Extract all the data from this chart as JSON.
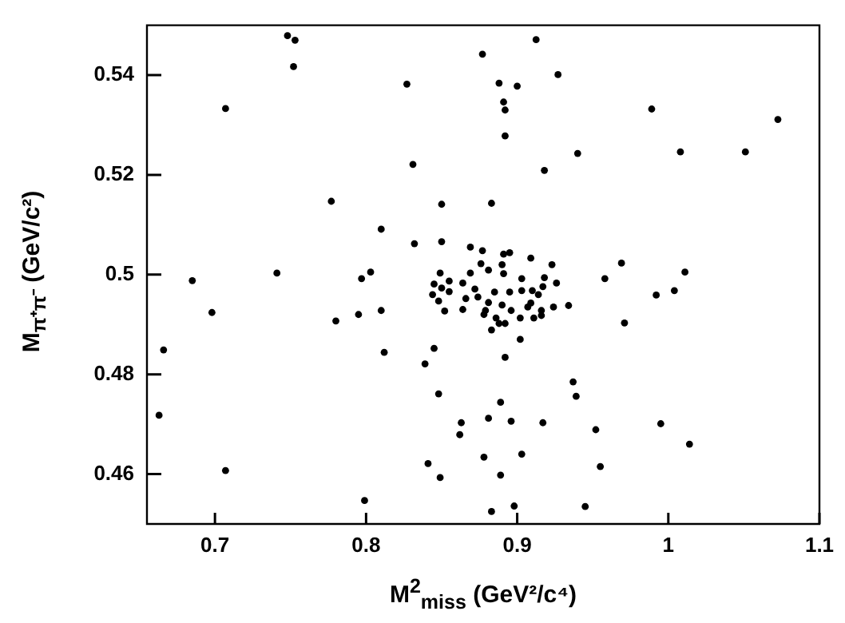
{
  "chart_data": {
    "type": "scatter",
    "xlabel": "M$^{2}$$_{miss}$ (GeV²/c⁴)",
    "ylabel": "M$_{π⁺π⁻}$ (GeV/c²)",
    "xlim": [
      0.655,
      1.1
    ],
    "ylim": [
      0.45,
      0.55
    ],
    "xticks": [
      0.7,
      0.8,
      0.9,
      1,
      1.1
    ],
    "yticks": [
      0.46,
      0.48,
      0.5,
      0.52,
      0.54
    ],
    "grid": false,
    "legend": false,
    "marker": "circle",
    "series": [
      {
        "color": "#000000",
        "x": [
          0.748,
          0.753,
          0.752,
          0.707,
          0.827,
          0.877,
          0.831,
          0.777,
          0.85,
          0.81,
          0.832,
          0.85,
          0.869,
          0.877,
          0.876,
          0.741,
          0.803,
          0.849,
          0.869,
          0.9125,
          0.927,
          0.888,
          0.9,
          0.891,
          0.892,
          0.892,
          0.989,
          1.0725,
          0.94,
          1.008,
          1.051,
          0.918,
          0.883,
          0.969,
          1.011,
          0.909,
          0.923,
          0.891,
          0.895,
          0.881,
          0.89,
          0.685,
          0.797,
          0.698,
          0.78,
          0.795,
          0.81,
          0.666,
          0.812,
          0.845,
          0.839,
          0.848,
          0.663,
          0.863,
          0.862,
          0.878,
          0.707,
          0.841,
          0.849,
          0.799,
          0.845,
          0.85,
          0.855,
          0.855,
          0.844,
          0.848,
          0.852,
          0.864,
          0.864,
          0.872,
          0.866,
          0.958,
          0.992,
          1.004,
          0.971,
          0.926,
          0.934,
          0.924,
          0.902,
          0.892,
          0.937,
          0.939,
          0.889,
          0.881,
          0.896,
          0.917,
          0.952,
          0.995,
          1.014,
          0.903,
          0.955,
          0.889,
          0.883,
          0.898,
          0.945,
          0.883,
          0.888,
          0.892,
          0.886,
          0.878,
          0.902,
          0.911,
          0.916,
          0.907,
          0.914,
          0.917,
          0.918,
          0.91,
          0.903,
          0.903,
          0.895,
          0.891,
          0.89,
          0.881,
          0.874,
          0.885,
          0.879,
          0.896,
          0.909,
          0.916
        ],
        "values": [
          0.5479,
          0.547,
          0.5417,
          0.5333,
          0.5382,
          0.5442,
          0.5221,
          0.5147,
          0.5141,
          0.5091,
          0.5062,
          0.5066,
          0.5055,
          0.5048,
          0.5022,
          0.5003,
          0.5005,
          0.5003,
          0.5003,
          0.5471,
          0.5401,
          0.5384,
          0.5378,
          0.5346,
          0.533,
          0.5278,
          0.5332,
          0.5311,
          0.5243,
          0.5246,
          0.5246,
          0.5209,
          0.5143,
          0.5023,
          0.5005,
          0.5033,
          0.502,
          0.5041,
          0.5044,
          0.5009,
          0.502,
          0.4988,
          0.4992,
          0.4924,
          0.4907,
          0.492,
          0.4928,
          0.4849,
          0.4844,
          0.4852,
          0.4821,
          0.4761,
          0.4718,
          0.4703,
          0.4679,
          0.4634,
          0.4607,
          0.4621,
          0.4593,
          0.4547,
          0.4981,
          0.4973,
          0.4987,
          0.4966,
          0.496,
          0.4947,
          0.4927,
          0.493,
          0.4983,
          0.4971,
          0.4952,
          0.4992,
          0.4959,
          0.4968,
          0.4903,
          0.4983,
          0.4938,
          0.4935,
          0.487,
          0.4834,
          0.4785,
          0.4756,
          0.4744,
          0.4712,
          0.4706,
          0.4703,
          0.4689,
          0.4701,
          0.466,
          0.464,
          0.4615,
          0.4598,
          0.4525,
          0.4536,
          0.4535,
          0.4889,
          0.4902,
          0.4902,
          0.4913,
          0.492,
          0.4913,
          0.4913,
          0.4918,
          0.4935,
          0.496,
          0.4976,
          0.4994,
          0.4968,
          0.4992,
          0.4968,
          0.4965,
          0.5002,
          0.4939,
          0.4944,
          0.4955,
          0.4965,
          0.4928,
          0.4928,
          0.4943,
          0.4928
        ]
      }
    ]
  }
}
